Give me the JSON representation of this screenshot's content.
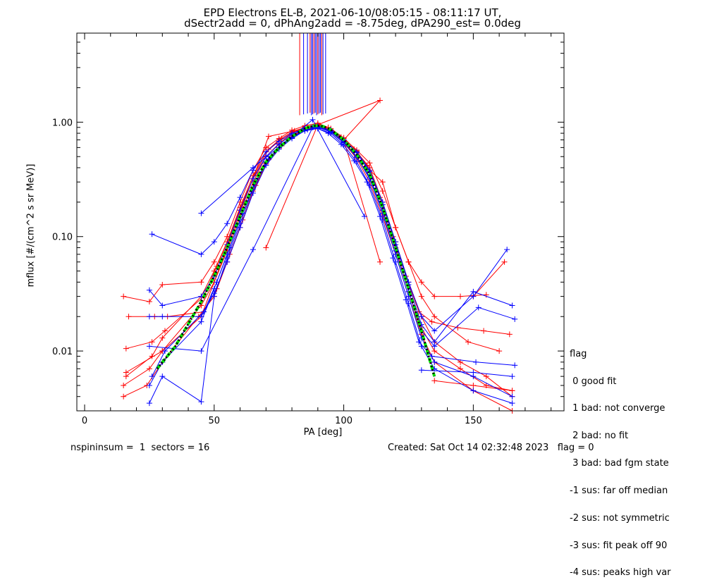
{
  "title_line1": "EPD Electrons EL-B, 2021-06-10/08:05:15 - 08:11:17 UT,",
  "title_line2": "dSectr2add = 0, dPhAng2add = -8.75deg, dPA290_est=   0.0deg",
  "footer_left": "nspininsum =  1  sectors = 16",
  "footer_right": "Created: Sat Oct 14 02:32:48 2023   flag = 0",
  "legend": {
    "title": "flag",
    "items": [
      " 0 good fit",
      " 1 bad: not converge",
      " 2 bad: no fit",
      " 3 bad: bad fgm state",
      "-1 sus: far off median",
      "-2 sus: not symmetric",
      "-3 sus: fit peak off 90",
      "-4 sus: peaks high var"
    ]
  },
  "colors": {
    "red": "#ff0000",
    "blue": "#0000ff",
    "fit_green": "#00ee00",
    "fit_black": "#000000"
  },
  "chart_data": {
    "type": "line",
    "xlabel": "PA [deg]",
    "ylabel": "mflux [#/(cm^2 s sr MeV)]",
    "xlim": [
      -3,
      185
    ],
    "ylim": [
      0.003,
      6.0
    ],
    "yscale": "log",
    "xticks": [
      0,
      50,
      100,
      150
    ],
    "xtick_labels": [
      "0",
      "50",
      "100",
      "150"
    ],
    "yticks": [
      0.01,
      0.1,
      1.0
    ],
    "ytick_labels": [
      "0.01",
      "0.10",
      "1.00"
    ],
    "fit_curve": {
      "x": [
        28,
        35,
        45,
        50,
        55,
        60,
        65,
        70,
        75,
        80,
        85,
        88,
        90,
        92,
        95,
        100,
        105,
        110,
        115,
        120,
        125,
        130,
        135
      ],
      "y": [
        0.007,
        0.011,
        0.027,
        0.045,
        0.08,
        0.15,
        0.28,
        0.45,
        0.6,
        0.75,
        0.88,
        0.93,
        0.93,
        0.92,
        0.86,
        0.7,
        0.52,
        0.35,
        0.18,
        0.08,
        0.035,
        0.015,
        0.006
      ]
    },
    "series": [
      {
        "color": "red",
        "x": [
          15,
          25,
          30,
          45,
          50,
          55,
          60,
          65,
          70,
          75,
          80,
          85,
          90,
          95,
          100,
          105,
          110,
          115,
          120,
          125,
          130,
          135,
          145,
          155,
          165
        ],
        "y": [
          0.005,
          0.007,
          0.01,
          0.025,
          0.04,
          0.075,
          0.15,
          0.3,
          0.5,
          0.65,
          0.8,
          0.9,
          0.95,
          0.85,
          0.7,
          0.55,
          0.4,
          0.2,
          0.09,
          0.04,
          0.02,
          0.012,
          0.008,
          0.006,
          0.004
        ]
      },
      {
        "color": "red",
        "x": [
          16,
          26,
          30,
          45,
          50,
          55,
          60,
          65,
          70,
          75,
          80,
          85,
          90,
          95,
          100,
          105,
          110,
          115,
          120,
          125,
          130,
          135,
          145,
          155,
          165
        ],
        "y": [
          0.006,
          0.009,
          0.013,
          0.03,
          0.05,
          0.09,
          0.18,
          0.34,
          0.55,
          0.7,
          0.82,
          0.88,
          0.92,
          0.84,
          0.68,
          0.5,
          0.33,
          0.17,
          0.08,
          0.033,
          0.016,
          0.01,
          0.007,
          0.005,
          0.0045
        ]
      },
      {
        "color": "red",
        "x": [
          17,
          27,
          32,
          46,
          51,
          56,
          61,
          66,
          71,
          76,
          81,
          86,
          90,
          94,
          99,
          104,
          109,
          114,
          119,
          124,
          129,
          134,
          144,
          154,
          164
        ],
        "y": [
          0.02,
          0.02,
          0.02,
          0.022,
          0.035,
          0.07,
          0.14,
          0.28,
          0.47,
          0.62,
          0.77,
          0.88,
          0.96,
          0.9,
          0.74,
          0.58,
          0.42,
          0.22,
          0.1,
          0.045,
          0.022,
          0.018,
          0.016,
          0.015,
          0.014
        ]
      },
      {
        "color": "red",
        "x": [
          15,
          25,
          30,
          45,
          50,
          55,
          60,
          65,
          70,
          75,
          80,
          85,
          90,
          95,
          100,
          105,
          110,
          115,
          120,
          125,
          130,
          135,
          145,
          155
        ],
        "y": [
          0.03,
          0.027,
          0.038,
          0.04,
          0.06,
          0.1,
          0.2,
          0.38,
          0.6,
          0.72,
          0.85,
          0.93,
          0.98,
          0.88,
          0.73,
          0.56,
          0.38,
          0.3,
          0.12,
          0.06,
          0.04,
          0.03,
          0.03,
          0.031
        ]
      },
      {
        "color": "red",
        "x": [
          15,
          24,
          30,
          44,
          50,
          55,
          60,
          65,
          70,
          75,
          80,
          85,
          90,
          95,
          100,
          105,
          110,
          115,
          120,
          125,
          130,
          135,
          150,
          165
        ],
        "y": [
          0.004,
          0.005,
          0.008,
          0.02,
          0.03,
          0.06,
          0.12,
          0.25,
          0.43,
          0.6,
          0.76,
          0.86,
          0.91,
          0.82,
          0.66,
          0.48,
          0.3,
          0.15,
          0.07,
          0.03,
          0.014,
          0.008,
          0.0045,
          0.003
        ]
      },
      {
        "color": "red",
        "x": [
          16,
          26,
          31,
          46,
          51,
          56,
          61,
          66,
          71,
          76,
          81,
          86,
          90,
          95,
          100,
          105,
          110,
          115,
          120,
          125,
          130,
          135,
          148,
          160
        ],
        "y": [
          0.0105,
          0.012,
          0.015,
          0.03,
          0.055,
          0.1,
          0.2,
          0.36,
          0.58,
          0.72,
          0.84,
          0.91,
          0.94,
          0.86,
          0.72,
          0.57,
          0.44,
          0.25,
          0.12,
          0.06,
          0.03,
          0.02,
          0.012,
          0.01
        ]
      },
      {
        "color": "red",
        "x": [
          70,
          90,
          114,
          100,
          114
        ],
        "y": [
          0.08,
          0.95,
          1.55,
          0.7,
          0.06
        ]
      },
      {
        "color": "red",
        "x": [
          16,
          30,
          45,
          71,
          85,
          90
        ],
        "y": [
          0.0065,
          0.01,
          0.02,
          0.75,
          0.88,
          0.93
        ]
      },
      {
        "color": "red",
        "x": [
          135,
          150,
          165
        ],
        "y": [
          0.0055,
          0.005,
          0.0045
        ]
      },
      {
        "color": "red",
        "x": [
          150,
          162
        ],
        "y": [
          0.03,
          0.06
        ]
      },
      {
        "color": "blue",
        "x": [
          25,
          30,
          45,
          50,
          55,
          60,
          65,
          70,
          75,
          80,
          85,
          90,
          95,
          100,
          105,
          110,
          115,
          120,
          125,
          130,
          135,
          150,
          165
        ],
        "y": [
          0.005,
          0.008,
          0.018,
          0.035,
          0.07,
          0.14,
          0.27,
          0.45,
          0.6,
          0.74,
          0.85,
          0.9,
          0.82,
          0.66,
          0.5,
          0.32,
          0.16,
          0.07,
          0.03,
          0.013,
          0.008,
          0.006,
          0.004
        ]
      },
      {
        "color": "blue",
        "x": [
          26,
          31,
          46,
          51,
          56,
          61,
          66,
          71,
          76,
          81,
          86,
          90,
          94,
          99,
          104,
          109,
          114,
          119,
          124,
          129,
          134,
          151,
          166
        ],
        "y": [
          0.006,
          0.01,
          0.022,
          0.04,
          0.08,
          0.16,
          0.3,
          0.48,
          0.63,
          0.76,
          0.86,
          0.88,
          0.8,
          0.64,
          0.46,
          0.3,
          0.15,
          0.065,
          0.028,
          0.012,
          0.009,
          0.008,
          0.0075
        ]
      },
      {
        "color": "blue",
        "x": [
          26,
          45,
          50,
          55,
          60,
          65,
          70,
          75,
          80,
          85,
          90,
          95,
          100,
          105,
          110,
          115,
          120,
          125,
          130,
          135,
          150,
          163
        ],
        "y": [
          0.105,
          0.07,
          0.09,
          0.13,
          0.22,
          0.38,
          0.55,
          0.68,
          0.8,
          0.88,
          0.92,
          0.85,
          0.7,
          0.55,
          0.38,
          0.2,
          0.09,
          0.04,
          0.02,
          0.015,
          0.03,
          0.077
        ]
      },
      {
        "color": "blue",
        "x": [
          45,
          65,
          88,
          108
        ],
        "y": [
          0.16,
          0.4,
          1.05,
          0.15
        ]
      },
      {
        "color": "blue",
        "x": [
          25,
          30,
          45,
          50,
          55,
          60,
          65,
          70,
          75,
          80,
          85,
          90,
          95,
          100,
          105,
          110,
          115,
          120,
          125,
          130,
          135,
          152,
          166
        ],
        "y": [
          0.02,
          0.02,
          0.02,
          0.032,
          0.06,
          0.12,
          0.24,
          0.42,
          0.58,
          0.72,
          0.84,
          0.91,
          0.83,
          0.67,
          0.49,
          0.33,
          0.17,
          0.075,
          0.033,
          0.015,
          0.011,
          0.024,
          0.019
        ]
      },
      {
        "color": "blue",
        "x": [
          25,
          30,
          45,
          50,
          55,
          60,
          65,
          70,
          75,
          80,
          85,
          90,
          95,
          100,
          105,
          110,
          115,
          120,
          125,
          130,
          135,
          150,
          165
        ],
        "y": [
          0.0035,
          0.006,
          0.0036,
          0.03,
          0.065,
          0.13,
          0.26,
          0.44,
          0.6,
          0.73,
          0.84,
          0.88,
          0.8,
          0.63,
          0.45,
          0.28,
          0.14,
          0.06,
          0.026,
          0.011,
          0.007,
          0.0045,
          0.0035
        ]
      },
      {
        "color": "blue",
        "x": [
          25,
          30,
          45,
          50,
          55,
          60,
          65,
          70,
          75,
          80,
          85,
          90,
          95,
          100,
          105,
          110,
          115,
          120,
          125,
          130,
          135,
          150,
          165
        ],
        "y": [
          0.034,
          0.025,
          0.03,
          0.045,
          0.085,
          0.17,
          0.32,
          0.5,
          0.64,
          0.78,
          0.87,
          0.92,
          0.85,
          0.7,
          0.54,
          0.37,
          0.19,
          0.085,
          0.038,
          0.017,
          0.012,
          0.033,
          0.025
        ]
      },
      {
        "color": "blue",
        "x": [
          25,
          45,
          65,
          88
        ],
        "y": [
          0.011,
          0.01,
          0.077,
          0.9
        ]
      },
      {
        "color": "blue",
        "x": [
          130,
          150,
          165
        ],
        "y": [
          0.0068,
          0.0065,
          0.006
        ]
      }
    ]
  }
}
